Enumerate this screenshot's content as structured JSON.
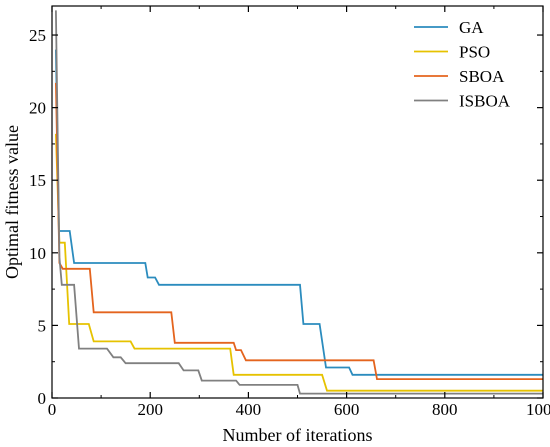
{
  "chart_data": {
    "type": "line",
    "xlabel": "Number of iterations",
    "ylabel": "Optimal fitness value",
    "xlim": [
      0,
      1000
    ],
    "ylim": [
      0,
      27
    ],
    "xticks": [
      0,
      200,
      400,
      600,
      800,
      1000
    ],
    "yticks": [
      0,
      5,
      10,
      15,
      20,
      25
    ],
    "legend_position": "top-right",
    "grid": false,
    "series": [
      {
        "name": "GA",
        "color": "#2b8cbe",
        "points": [
          [
            8,
            24
          ],
          [
            14,
            11.5
          ],
          [
            36,
            11.5
          ],
          [
            45,
            9.3
          ],
          [
            190,
            9.3
          ],
          [
            195,
            8.3
          ],
          [
            210,
            8.3
          ],
          [
            218,
            7.8
          ],
          [
            505,
            7.8
          ],
          [
            512,
            5.1
          ],
          [
            545,
            5.1
          ],
          [
            558,
            2.1
          ],
          [
            605,
            2.1
          ],
          [
            612,
            1.6
          ],
          [
            1000,
            1.6
          ]
        ]
      },
      {
        "name": "PSO",
        "color": "#e6c200",
        "points": [
          [
            8,
            18.2
          ],
          [
            15,
            10.7
          ],
          [
            26,
            10.7
          ],
          [
            35,
            5.1
          ],
          [
            75,
            5.1
          ],
          [
            85,
            3.9
          ],
          [
            160,
            3.9
          ],
          [
            168,
            3.4
          ],
          [
            363,
            3.4
          ],
          [
            370,
            1.6
          ],
          [
            550,
            1.6
          ],
          [
            560,
            0.5
          ],
          [
            1000,
            0.5
          ]
        ]
      },
      {
        "name": "SBOA",
        "color": "#e4641e",
        "points": [
          [
            8,
            21.7
          ],
          [
            15,
            9.3
          ],
          [
            22,
            8.9
          ],
          [
            77,
            8.9
          ],
          [
            85,
            5.9
          ],
          [
            243,
            5.9
          ],
          [
            250,
            3.8
          ],
          [
            370,
            3.8
          ],
          [
            375,
            3.3
          ],
          [
            385,
            3.3
          ],
          [
            395,
            2.6
          ],
          [
            655,
            2.6
          ],
          [
            662,
            1.3
          ],
          [
            1000,
            1.3
          ]
        ]
      },
      {
        "name": "ISBOA",
        "color": "#808080",
        "points": [
          [
            8,
            26.7
          ],
          [
            15,
            9.7
          ],
          [
            20,
            7.8
          ],
          [
            45,
            7.8
          ],
          [
            55,
            3.4
          ],
          [
            112,
            3.4
          ],
          [
            125,
            2.8
          ],
          [
            140,
            2.8
          ],
          [
            150,
            2.4
          ],
          [
            258,
            2.4
          ],
          [
            268,
            1.9
          ],
          [
            298,
            1.9
          ],
          [
            305,
            1.2
          ],
          [
            375,
            1.2
          ],
          [
            382,
            0.9
          ],
          [
            500,
            0.9
          ],
          [
            505,
            0.3
          ],
          [
            1000,
            0.3
          ]
        ]
      }
    ]
  }
}
